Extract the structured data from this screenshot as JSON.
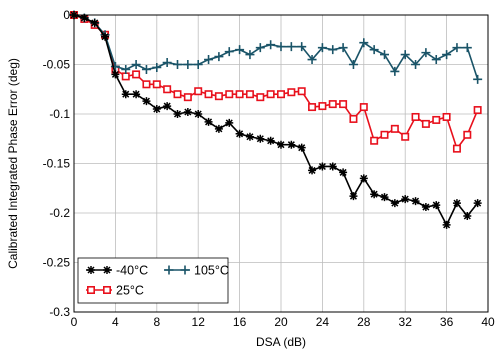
{
  "chart_data": {
    "type": "line",
    "xlabel": "DSA (dB)",
    "ylabel": "Calibrated Integrated Phase Error (deg)",
    "xlim": [
      0,
      40
    ],
    "ylim": [
      -0.3,
      0
    ],
    "xticks": [
      0,
      4,
      8,
      12,
      16,
      20,
      24,
      28,
      32,
      36,
      40
    ],
    "yticks": [
      0,
      -0.05,
      -0.1,
      -0.15,
      -0.2,
      -0.25,
      -0.3
    ],
    "ytick_labels": [
      "0",
      "-0.05",
      "-0.1",
      "-0.15",
      "-0.2",
      "-0.25",
      "-0.3"
    ],
    "grid": true,
    "legend_position": "bottom-left",
    "x": [
      0,
      1,
      2,
      3,
      4,
      5,
      6,
      7,
      8,
      9,
      10,
      11,
      12,
      13,
      14,
      15,
      16,
      17,
      18,
      19,
      20,
      21,
      22,
      23,
      24,
      25,
      26,
      27,
      28,
      29,
      30,
      31,
      32,
      33,
      34,
      35,
      36,
      37,
      38,
      39
    ],
    "series": [
      {
        "name": "-40°C",
        "color": "#000000",
        "marker": "star",
        "values": [
          0,
          -0.003,
          -0.008,
          -0.022,
          -0.06,
          -0.08,
          -0.08,
          -0.087,
          -0.095,
          -0.092,
          -0.1,
          -0.098,
          -0.1,
          -0.108,
          -0.115,
          -0.109,
          -0.12,
          -0.123,
          -0.125,
          -0.127,
          -0.131,
          -0.131,
          -0.134,
          -0.157,
          -0.153,
          -0.153,
          -0.159,
          -0.183,
          -0.165,
          -0.181,
          -0.184,
          -0.19,
          -0.186,
          -0.188,
          -0.194,
          -0.192,
          -0.212,
          -0.19,
          -0.203,
          -0.19
        ]
      },
      {
        "name": "25°C",
        "color": "#e8101c",
        "marker": "square",
        "values": [
          0,
          -0.004,
          -0.01,
          -0.02,
          -0.055,
          -0.062,
          -0.06,
          -0.07,
          -0.07,
          -0.075,
          -0.08,
          -0.083,
          -0.077,
          -0.08,
          -0.082,
          -0.08,
          -0.08,
          -0.08,
          -0.083,
          -0.08,
          -0.08,
          -0.078,
          -0.077,
          -0.093,
          -0.092,
          -0.09,
          -0.09,
          -0.105,
          -0.093,
          -0.127,
          -0.121,
          -0.115,
          -0.123,
          -0.103,
          -0.11,
          -0.106,
          -0.103,
          -0.135,
          -0.121,
          -0.096
        ]
      },
      {
        "name": "105°C",
        "color": "#1a5468",
        "marker": "plus",
        "values": [
          0,
          -0.003,
          -0.008,
          -0.02,
          -0.052,
          -0.055,
          -0.05,
          -0.055,
          -0.053,
          -0.048,
          -0.05,
          -0.05,
          -0.05,
          -0.045,
          -0.042,
          -0.037,
          -0.035,
          -0.04,
          -0.033,
          -0.03,
          -0.032,
          -0.032,
          -0.032,
          -0.045,
          -0.033,
          -0.035,
          -0.033,
          -0.05,
          -0.028,
          -0.035,
          -0.04,
          -0.057,
          -0.04,
          -0.05,
          -0.038,
          -0.045,
          -0.04,
          -0.033,
          -0.033,
          -0.065
        ]
      }
    ]
  }
}
